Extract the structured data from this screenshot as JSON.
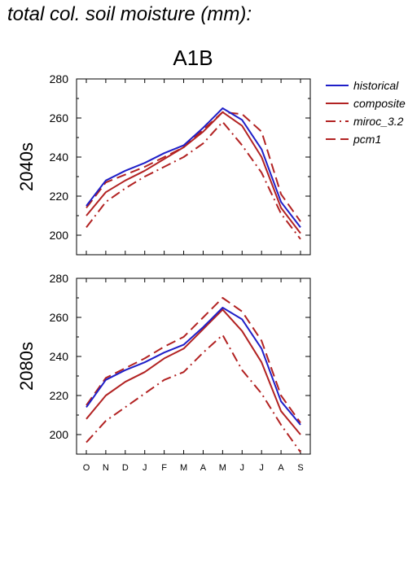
{
  "page_title": "total col. soil moisture (mm):",
  "colors": {
    "historical": "#1f1fc8",
    "composite": "#b22222",
    "miroc_3.2": "#b22222",
    "pcm1": "#b22222"
  },
  "chart_data": [
    {
      "type": "line",
      "title": "A1B",
      "ylabel": "2040s",
      "categories": [
        "O",
        "N",
        "D",
        "J",
        "F",
        "M",
        "A",
        "M",
        "J",
        "J",
        "A",
        "S"
      ],
      "ylim": [
        190,
        280
      ],
      "yticks": [
        200,
        220,
        240,
        260,
        280
      ],
      "grid": false,
      "legend_placement": "right",
      "series": [
        {
          "name": "historical",
          "style": "solid",
          "color": "#1f1fc8",
          "values": [
            215,
            228,
            233,
            237,
            242,
            246,
            255,
            265,
            259,
            244,
            217,
            204
          ]
        },
        {
          "name": "composite",
          "style": "solid",
          "color": "#b22222",
          "values": [
            210,
            222,
            228,
            233,
            239,
            245,
            253,
            263,
            256,
            240,
            214,
            201
          ]
        },
        {
          "name": "miroc_3.2",
          "style": "dashdot",
          "color": "#b22222",
          "values": [
            204,
            217,
            224,
            230,
            235,
            240,
            247,
            258,
            246,
            232,
            211,
            198
          ]
        },
        {
          "name": "pcm1",
          "style": "dashed",
          "color": "#b22222",
          "values": [
            214,
            227,
            231,
            235,
            240,
            245,
            254,
            263,
            262,
            253,
            221,
            207
          ]
        }
      ]
    },
    {
      "type": "line",
      "title": "",
      "ylabel": "2080s",
      "categories": [
        "O",
        "N",
        "D",
        "J",
        "F",
        "M",
        "A",
        "M",
        "J",
        "J",
        "A",
        "S"
      ],
      "ylim": [
        190,
        280
      ],
      "yticks": [
        200,
        220,
        240,
        260,
        280
      ],
      "grid": false,
      "series": [
        {
          "name": "historical",
          "style": "solid",
          "color": "#1f1fc8",
          "values": [
            214,
            228,
            233,
            237,
            242,
            246,
            255,
            265,
            259,
            244,
            217,
            205
          ]
        },
        {
          "name": "composite",
          "style": "solid",
          "color": "#b22222",
          "values": [
            208,
            220,
            227,
            232,
            239,
            244,
            254,
            264,
            253,
            237,
            212,
            200
          ]
        },
        {
          "name": "miroc_3.2",
          "style": "dashdot",
          "color": "#b22222",
          "values": [
            196,
            207,
            214,
            221,
            228,
            232,
            242,
            251,
            233,
            221,
            205,
            191
          ]
        },
        {
          "name": "pcm1",
          "style": "dashed",
          "color": "#b22222",
          "values": [
            215,
            229,
            234,
            239,
            245,
            250,
            260,
            270,
            263,
            248,
            220,
            206
          ]
        }
      ]
    }
  ]
}
